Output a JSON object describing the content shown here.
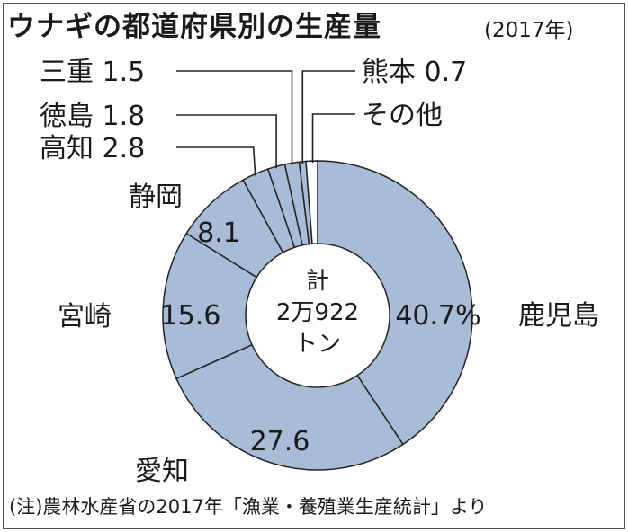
{
  "title": "ウナギの都道府県別の生産量",
  "year_note": "(2017年)",
  "center_label": [
    "計",
    "2万922",
    "トン"
  ],
  "footnote": "(注)農林水産省の2017年「漁業・養殖業生産統計」より",
  "colors": {
    "slice": "#a9bcd7",
    "slice_other": "#ffffff",
    "stroke": "#222222",
    "text": "#1a1a1a"
  },
  "chart_data": {
    "type": "pie",
    "title": "ウナギの都道府県別の生産量",
    "unit": "%",
    "total": "計 2万922トン",
    "slices": [
      {
        "label": "鹿児島",
        "value": 40.7,
        "value_text": "40.7%"
      },
      {
        "label": "愛知",
        "value": 27.6,
        "value_text": "27.6"
      },
      {
        "label": "宮崎",
        "value": 15.6,
        "value_text": "15.6"
      },
      {
        "label": "静岡",
        "value": 8.1,
        "value_text": "8.1"
      },
      {
        "label": "高知",
        "value": 2.8,
        "value_text": "2.8"
      },
      {
        "label": "徳島",
        "value": 1.8,
        "value_text": "1.8"
      },
      {
        "label": "三重",
        "value": 1.5,
        "value_text": "1.5"
      },
      {
        "label": "熊本",
        "value": 0.7,
        "value_text": "0.7"
      },
      {
        "label": "その他",
        "value": 1.2,
        "value_text": ""
      }
    ]
  }
}
